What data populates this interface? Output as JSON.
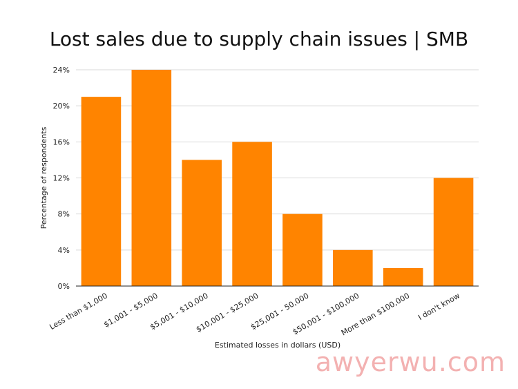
{
  "chart_data": {
    "type": "bar",
    "title": "Lost sales due to supply chain issues | SMB",
    "xlabel": "Estimated losses in dollars (USD)",
    "ylabel": "Percentage of respondents",
    "categories": [
      "Less than $1,000",
      "$1,001 - $5,000",
      "$5,001 - $10,000",
      "$10,001 - $25,000",
      "$25,001 - 50,000",
      "$50,001 - $100,000",
      "More than $100,000",
      "I don't know"
    ],
    "values": [
      21,
      24,
      14,
      16,
      8,
      4,
      2,
      12
    ],
    "ylim": [
      0,
      24
    ],
    "yticks": [
      0,
      4,
      8,
      12,
      16,
      20,
      24
    ],
    "ytick_labels": [
      "0%",
      "4%",
      "8%",
      "12%",
      "16%",
      "20%",
      "24%"
    ],
    "grid": true,
    "bar_color": "#ff8400"
  },
  "watermark": "awyerwu.com"
}
